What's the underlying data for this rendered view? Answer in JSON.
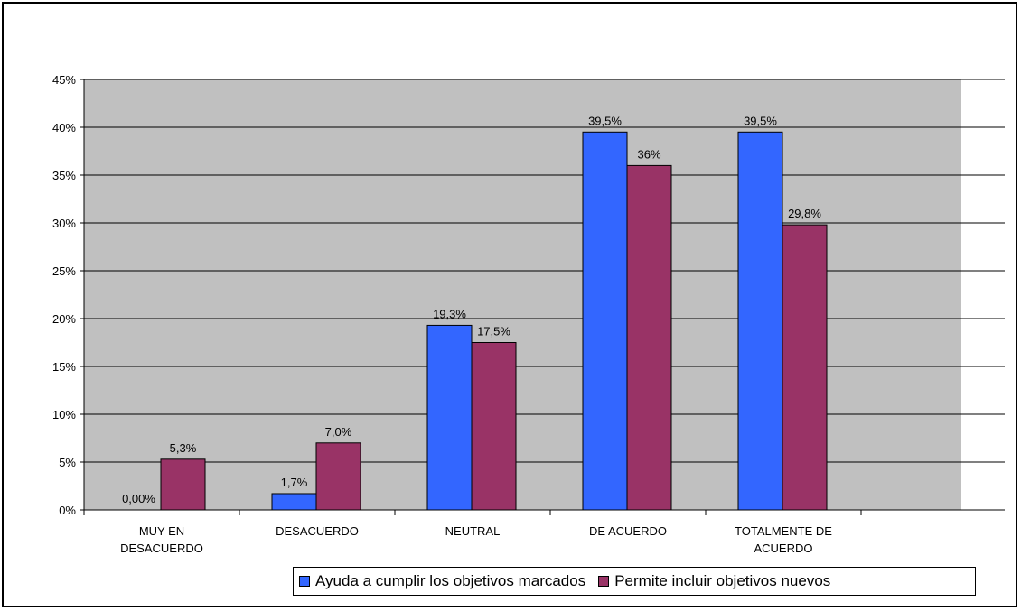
{
  "chart_data": {
    "type": "bar",
    "categories": [
      "MUY EN\nDESACUERDO",
      "DESACUERDO",
      "NEUTRAL",
      "DE ACUERDO",
      "TOTALMENTE DE\nACUERDO"
    ],
    "series": [
      {
        "name": "Ayuda a cumplir los objetivos marcados",
        "color": "#3366ff",
        "values": [
          0.0,
          1.7,
          19.3,
          39.5,
          39.5
        ],
        "labels": [
          "0,00%",
          "1,7%",
          "19,3%",
          "39,5%",
          "39,5%"
        ]
      },
      {
        "name": "Permite incluir objetivos nuevos",
        "color": "#993366",
        "values": [
          5.3,
          7.0,
          17.5,
          36.0,
          29.8
        ],
        "labels": [
          "5,3%",
          "7,0%",
          "17,5%",
          "36%",
          "29,8%"
        ]
      }
    ],
    "yticks": [
      "0%",
      "5%",
      "10%",
      "15%",
      "20%",
      "25%",
      "30%",
      "35%",
      "40%",
      "45%"
    ],
    "ylim": [
      0,
      45
    ],
    "grid": true,
    "plot_background": "#c0c0c0",
    "legend_position": "bottom"
  }
}
